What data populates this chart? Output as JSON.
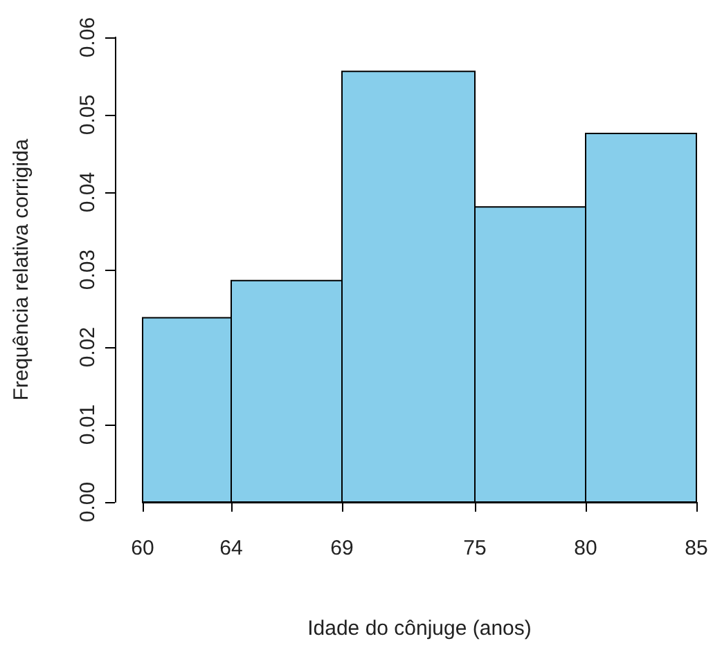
{
  "chart_data": {
    "type": "histogram",
    "xlabel": "Idade do cônjuge (anos)",
    "ylabel": "Frequência relativa corrigida",
    "bins": [
      60,
      64,
      69,
      75,
      80,
      85
    ],
    "values": [
      0.0238,
      0.0286,
      0.0556,
      0.0381,
      0.0476
    ],
    "color": "#87ceeb",
    "xlim": [
      60,
      85
    ],
    "xticks": [
      60,
      64,
      69,
      75,
      80,
      85
    ],
    "ylim": [
      0,
      0.06
    ],
    "yticks": [
      {
        "value": 0,
        "label": "0.00"
      },
      {
        "value": 0.01,
        "label": "0.01"
      },
      {
        "value": 0.02,
        "label": "0.02"
      },
      {
        "value": 0.03,
        "label": "0.03"
      },
      {
        "value": 0.04,
        "label": "0.04"
      },
      {
        "value": 0.05,
        "label": "0.05"
      },
      {
        "value": 0.06,
        "label": "0.06"
      }
    ],
    "grid": false
  }
}
